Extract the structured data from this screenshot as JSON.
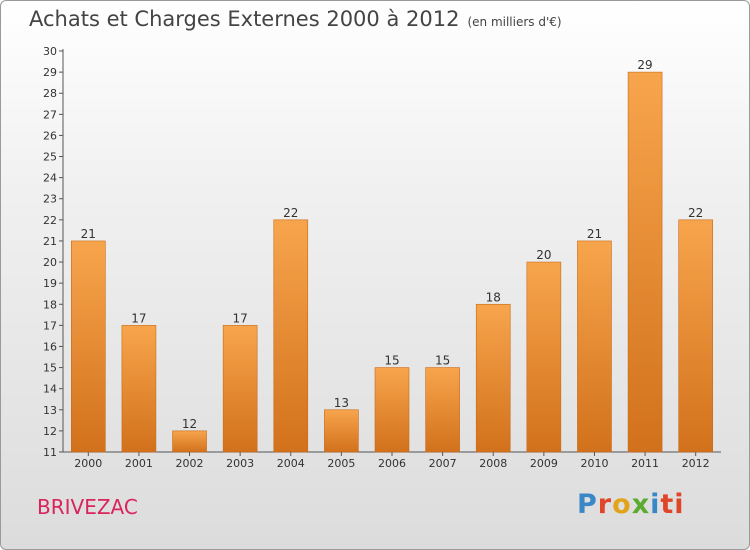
{
  "header": {
    "title": "Achats et Charges Externes 2000 à 2012",
    "subtitle": "(en milliers d'€)"
  },
  "footer": {
    "commune": "BRIVEZAC",
    "logo": "Proxiti"
  },
  "colors": {
    "bar_light": "#f7a54d",
    "bar_dark": "#d2711c",
    "commune_text": "#d9245c",
    "logo_letters": [
      "#3a87c8",
      "#e0452a",
      "#e0a31a",
      "#5aab2f",
      "#3a87c8",
      "#e0452a",
      "#e0452a"
    ]
  },
  "chart_data": {
    "type": "bar",
    "title": "Achats et Charges Externes 2000 à 2012",
    "subtitle": "(en milliers d'€)",
    "xlabel": "",
    "ylabel": "",
    "categories": [
      "2000",
      "2001",
      "2002",
      "2003",
      "2004",
      "2005",
      "2006",
      "2007",
      "2008",
      "2009",
      "2010",
      "2011",
      "2012"
    ],
    "values": [
      21,
      17,
      12,
      17,
      22,
      13,
      15,
      15,
      18,
      20,
      21,
      29,
      22
    ],
    "ylim": [
      11,
      30
    ],
    "yticks": [
      11,
      12,
      13,
      14,
      15,
      16,
      17,
      18,
      19,
      20,
      21,
      22,
      23,
      24,
      25,
      26,
      27,
      28,
      29,
      30
    ],
    "grid": false,
    "data_labels": true
  }
}
